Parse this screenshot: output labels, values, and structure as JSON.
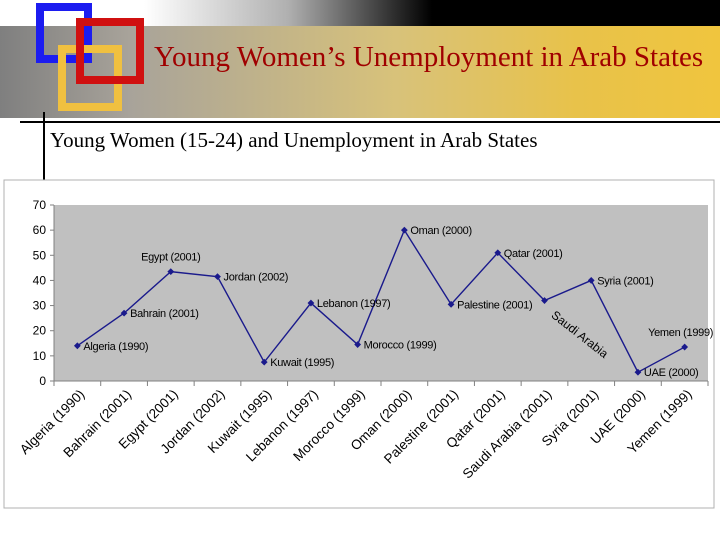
{
  "slide": {
    "title": "Young Women’s Unemployment in Arab States",
    "subtitle": "Young Women (15-24) and Unemployment in Arab States"
  },
  "colors": {
    "title": "#a00000",
    "series": "#1a1a8c",
    "plot_area": "#c0c0c0",
    "square_blue": "#1c1cf0",
    "square_red": "#d01010",
    "square_yellow": "#f0c040"
  },
  "chart_data": {
    "type": "line",
    "title": "",
    "xlabel": "",
    "ylabel": "",
    "ylim": [
      0,
      70
    ],
    "yticks": [
      0,
      10,
      20,
      30,
      40,
      50,
      60,
      70
    ],
    "grid": false,
    "legend": "none",
    "categories": [
      "Algeria (1990)",
      "Bahrain (2001)",
      "Egypt (2001)",
      "Jordan (2002)",
      "Kuwait (1995)",
      "Lebanon (1997)",
      "Morocco (1999)",
      "Oman (2000)",
      "Palestine (2001)",
      "Qatar (2001)",
      "Saudi Arabia (2001)",
      "Syria (2001)",
      "UAE (2000)",
      "Yemen (1999)"
    ],
    "values": [
      14,
      27,
      43.5,
      41.5,
      7.5,
      31,
      14.5,
      60,
      30.5,
      51,
      32,
      40,
      3.5,
      13.5
    ],
    "data_labels": [
      "Algeria (1990)",
      "Bahrain (2001)",
      "Egypt (2001)",
      "Jordan (2002)",
      "Kuwait (1995)",
      "Lebanon (1997)",
      "Morocco (1999)",
      "Oman (2000)",
      "Palestine (2001)",
      "Qatar (2001)",
      "",
      "Syria (2001)",
      "UAE (2000)",
      "Yemen (1999)"
    ],
    "annotation": "Saudi Arabia"
  }
}
